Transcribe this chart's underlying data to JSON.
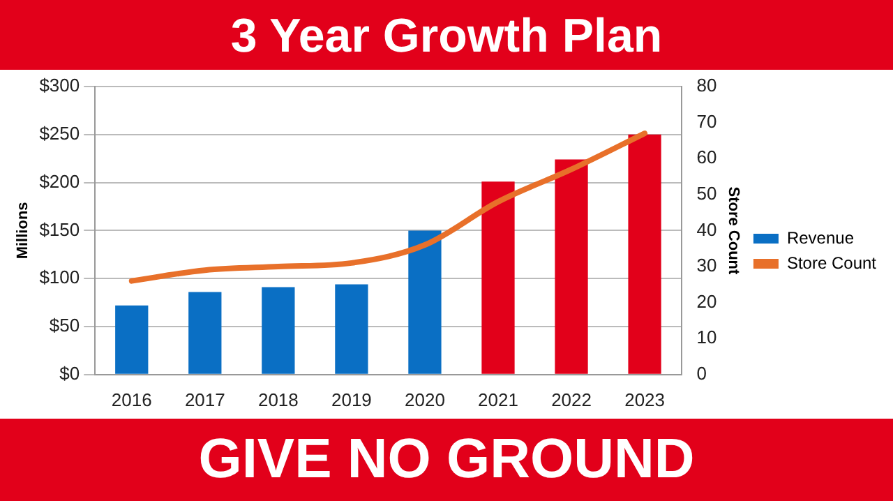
{
  "chart_data": {
    "type": "bar",
    "title": "3 Year Growth Plan",
    "annotations": [
      "GIVE NO GROUND"
    ],
    "ylabel": "Millions",
    "y2label": "Store Count",
    "categories": [
      "2016",
      "2017",
      "2018",
      "2019",
      "2020",
      "2021",
      "2022",
      "2023"
    ],
    "series": [
      {
        "name": "Revenue",
        "color": "#0a6fc4",
        "colors": [
          "#0a6fc4",
          "#0a6fc4",
          "#0a6fc4",
          "#0a6fc4",
          "#0a6fc4",
          "#e2001a",
          "#e2001a",
          "#e2001a"
        ],
        "values": [
          72,
          86,
          91,
          94,
          150,
          201,
          224,
          250
        ]
      },
      {
        "name": "Store Count",
        "type": "line",
        "axis": "y2",
        "color": "#e8702a",
        "values": [
          26,
          29,
          30,
          31,
          36,
          48,
          57,
          67
        ]
      }
    ],
    "ylim": [
      0,
      300
    ],
    "yticks": [
      {
        "value": 0,
        "label": "$0"
      },
      {
        "value": 50,
        "label": "$50"
      },
      {
        "value": 100,
        "label": "$100"
      },
      {
        "value": 150,
        "label": "$150"
      },
      {
        "value": 200,
        "label": "$200"
      },
      {
        "value": 250,
        "label": "$250"
      },
      {
        "value": 300,
        "label": "$300"
      }
    ],
    "y2lim": [
      0,
      80
    ],
    "y2ticks": [
      0,
      10,
      20,
      30,
      40,
      50,
      60,
      70,
      80
    ],
    "grid": "y",
    "legend": "right",
    "marker": "none"
  }
}
